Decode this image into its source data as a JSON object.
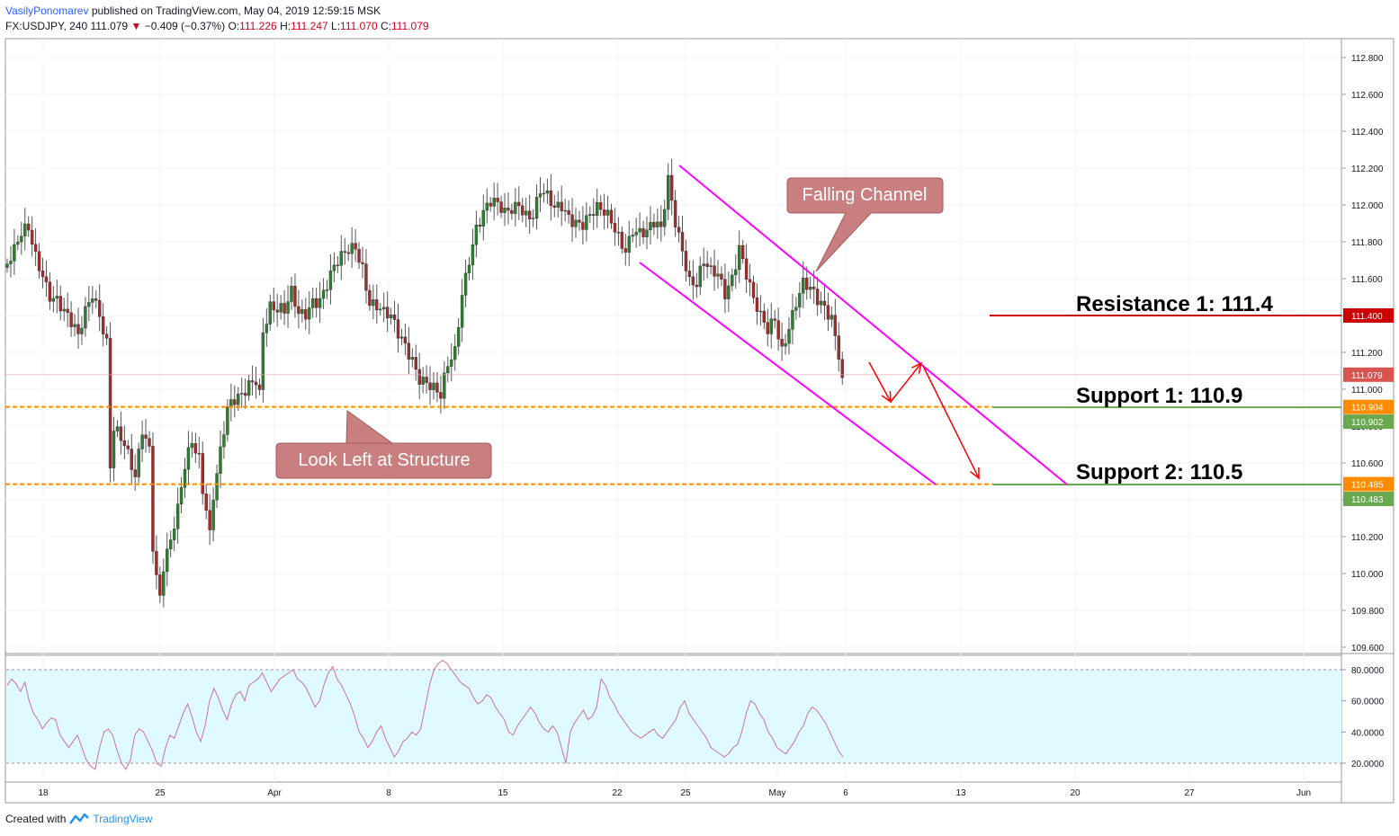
{
  "header": {
    "author": "VasilyPonomarev",
    "published": "published on TradingView.com, May 04, 2019 12:59:15 MSK",
    "symbol": "FX:USDJPY, 240",
    "last": "111.079",
    "arrow": "▼",
    "change": "−0.409 (−0.37%)",
    "o_label": "O:",
    "o_value": "111.226",
    "h_label": "H:",
    "h_value": "111.247",
    "l_label": "L:",
    "l_value": "111.070",
    "c_label": "C:",
    "c_value": "111.079"
  },
  "footer": {
    "created": "Created with",
    "brand": "TradingView"
  },
  "colors": {
    "up": "#2e7d32",
    "down": "#a52a2a",
    "channel": "#ff00ff",
    "dotted": "#ff8c00",
    "resistance": "#cc0000",
    "support": "#6aa84f",
    "arrows": "#ff0000",
    "callout": "#c97f7f",
    "rsi": "#c96fa6",
    "rsi_band": "#e0fbff"
  },
  "chart_data": {
    "type": "candlestick",
    "symbol": "FX:USDJPY",
    "timeframe": "240",
    "ylim": [
      109.55,
      112.9
    ],
    "y_ticks": [
      "112.800",
      "112.600",
      "112.400",
      "112.200",
      "112.000",
      "111.800",
      "111.600",
      "111.400",
      "111.200",
      "111.000",
      "110.800",
      "110.600",
      "110.400",
      "110.200",
      "110.000",
      "109.800",
      "109.600"
    ],
    "x_ticks": [
      "18",
      "25",
      "Apr",
      "8",
      "15",
      "22",
      "25",
      "May",
      "6",
      "13",
      "20",
      "27",
      "Jun"
    ],
    "close_path": [
      [
        0,
        111.68
      ],
      [
        2,
        111.72
      ],
      [
        4,
        111.8
      ],
      [
        6,
        111.85
      ],
      [
        8,
        111.73
      ],
      [
        10,
        111.66
      ],
      [
        12,
        111.55
      ],
      [
        14,
        111.5
      ],
      [
        16,
        111.4
      ],
      [
        18,
        111.32
      ],
      [
        20,
        111.25
      ],
      [
        22,
        111.42
      ],
      [
        24,
        111.55
      ],
      [
        26,
        111.45
      ],
      [
        28,
        111.28
      ],
      [
        29,
        110.6
      ],
      [
        30,
        110.78
      ],
      [
        32,
        110.7
      ],
      [
        34,
        110.6
      ],
      [
        36,
        110.5
      ],
      [
        38,
        110.8
      ],
      [
        40,
        110.72
      ],
      [
        41,
        110.2
      ],
      [
        42,
        110.02
      ],
      [
        43,
        109.9
      ],
      [
        44,
        110.05
      ],
      [
        46,
        110.15
      ],
      [
        48,
        110.3
      ],
      [
        50,
        110.55
      ],
      [
        52,
        110.72
      ],
      [
        54,
        110.66
      ],
      [
        55,
        110.5
      ],
      [
        56,
        110.4
      ],
      [
        57,
        110.25
      ],
      [
        58,
        110.45
      ],
      [
        60,
        110.65
      ],
      [
        62,
        110.85
      ],
      [
        64,
        110.9
      ],
      [
        66,
        110.95
      ],
      [
        68,
        111.05
      ],
      [
        70,
        111.1
      ],
      [
        71,
        111.02
      ],
      [
        72,
        111.35
      ],
      [
        74,
        111.45
      ],
      [
        76,
        111.4
      ],
      [
        78,
        111.38
      ],
      [
        80,
        111.5
      ],
      [
        82,
        111.42
      ],
      [
        84,
        111.45
      ],
      [
        86,
        111.52
      ],
      [
        88,
        111.5
      ],
      [
        90,
        111.55
      ],
      [
        92,
        111.62
      ],
      [
        94,
        111.68
      ],
      [
        96,
        111.75
      ],
      [
        98,
        111.8
      ],
      [
        100,
        111.7
      ],
      [
        102,
        111.5
      ],
      [
        104,
        111.45
      ],
      [
        106,
        111.38
      ],
      [
        108,
        111.35
      ],
      [
        110,
        111.28
      ],
      [
        112,
        111.25
      ],
      [
        114,
        111.2
      ],
      [
        116,
        111.1
      ],
      [
        118,
        111.05
      ],
      [
        120,
        110.98
      ],
      [
        122,
        110.92
      ],
      [
        124,
        111.1
      ],
      [
        126,
        111.2
      ],
      [
        128,
        111.55
      ],
      [
        130,
        111.75
      ],
      [
        132,
        111.9
      ],
      [
        134,
        111.95
      ],
      [
        136,
        111.98
      ],
      [
        138,
        111.96
      ],
      [
        140,
        111.94
      ],
      [
        142,
        112.0
      ],
      [
        144,
        112.05
      ],
      [
        146,
        111.98
      ],
      [
        148,
        111.95
      ],
      [
        150,
        112.05
      ],
      [
        152,
        112.0
      ],
      [
        154,
        111.95
      ],
      [
        156,
        112.0
      ],
      [
        158,
        111.97
      ],
      [
        160,
        111.95
      ],
      [
        162,
        111.92
      ],
      [
        164,
        111.93
      ],
      [
        166,
        111.94
      ],
      [
        168,
        111.92
      ],
      [
        170,
        111.9
      ],
      [
        172,
        111.85
      ],
      [
        174,
        111.8
      ],
      [
        176,
        111.9
      ],
      [
        178,
        111.85
      ],
      [
        180,
        111.82
      ],
      [
        182,
        111.86
      ],
      [
        184,
        111.84
      ],
      [
        186,
        112.15
      ],
      [
        188,
        111.95
      ],
      [
        190,
        111.8
      ],
      [
        192,
        111.6
      ],
      [
        194,
        111.55
      ],
      [
        196,
        111.65
      ],
      [
        198,
        111.6
      ],
      [
        200,
        111.62
      ],
      [
        202,
        111.55
      ],
      [
        204,
        111.65
      ],
      [
        206,
        111.8
      ],
      [
        208,
        111.62
      ],
      [
        210,
        111.45
      ],
      [
        212,
        111.35
      ],
      [
        214,
        111.3
      ],
      [
        216,
        111.4
      ],
      [
        218,
        111.25
      ],
      [
        220,
        111.38
      ],
      [
        222,
        111.48
      ],
      [
        224,
        111.55
      ],
      [
        226,
        111.5
      ],
      [
        228,
        111.45
      ],
      [
        230,
        111.44
      ],
      [
        232,
        111.42
      ],
      [
        234,
        111.24
      ],
      [
        235,
        111.08
      ]
    ],
    "rsi": {
      "ylim": [
        14,
        88
      ],
      "y_ticks": [
        "80.0000",
        "60.0000",
        "40.0000",
        "20.0000"
      ],
      "band": [
        20,
        80
      ],
      "values": [
        70,
        74,
        71,
        66,
        72,
        60,
        52,
        48,
        42,
        46,
        49,
        48,
        38,
        34,
        30,
        34,
        38,
        30,
        22,
        18,
        16,
        30,
        40,
        42,
        38,
        28,
        20,
        16,
        22,
        38,
        42,
        40,
        34,
        28,
        20,
        18,
        30,
        38,
        36,
        44,
        52,
        58,
        50,
        40,
        34,
        44,
        60,
        68,
        62,
        54,
        48,
        58,
        64,
        66,
        60,
        70,
        72,
        74,
        78,
        72,
        66,
        70,
        74,
        76,
        78,
        80,
        74,
        72,
        68,
        62,
        56,
        60,
        70,
        78,
        82,
        74,
        70,
        64,
        58,
        50,
        40,
        36,
        30,
        34,
        40,
        44,
        36,
        30,
        24,
        28,
        34,
        36,
        40,
        38,
        42,
        56,
        70,
        80,
        84,
        86,
        84,
        80,
        76,
        72,
        70,
        68,
        62,
        58,
        60,
        64,
        62,
        56,
        52,
        48,
        40,
        38,
        44,
        48,
        52,
        56,
        52,
        46,
        42,
        40,
        44,
        40,
        30,
        20,
        40,
        46,
        50,
        54,
        48,
        50,
        56,
        74,
        70,
        62,
        58,
        52,
        48,
        44,
        40,
        38,
        36,
        38,
        40,
        42,
        38,
        36,
        40,
        44,
        48,
        56,
        60,
        52,
        48,
        44,
        40,
        36,
        30,
        28,
        26,
        24,
        26,
        30,
        32,
        40,
        52,
        60,
        58,
        52,
        48,
        40,
        36,
        30,
        28,
        26,
        30,
        34,
        40,
        44,
        52,
        56,
        54,
        50,
        46,
        40,
        34,
        28,
        24
      ]
    },
    "levels": [
      {
        "name": "Resistance 1: 111.4",
        "price": 111.4,
        "badge": "111.400"
      },
      {
        "name": "Support 1: 110.9",
        "price": 110.902,
        "badge": "110.902"
      },
      {
        "name": "Support 2: 110.5",
        "price": 110.483,
        "badge": "110.483"
      }
    ],
    "dotted_levels": [
      {
        "price": 110.904,
        "badge": "110.904"
      },
      {
        "price": 110.485,
        "badge": "110.485"
      }
    ],
    "last_price": {
      "price": 111.079,
      "badge": "111.079"
    },
    "annotations": [
      "Falling Channel",
      "Look Left at Structure"
    ]
  }
}
